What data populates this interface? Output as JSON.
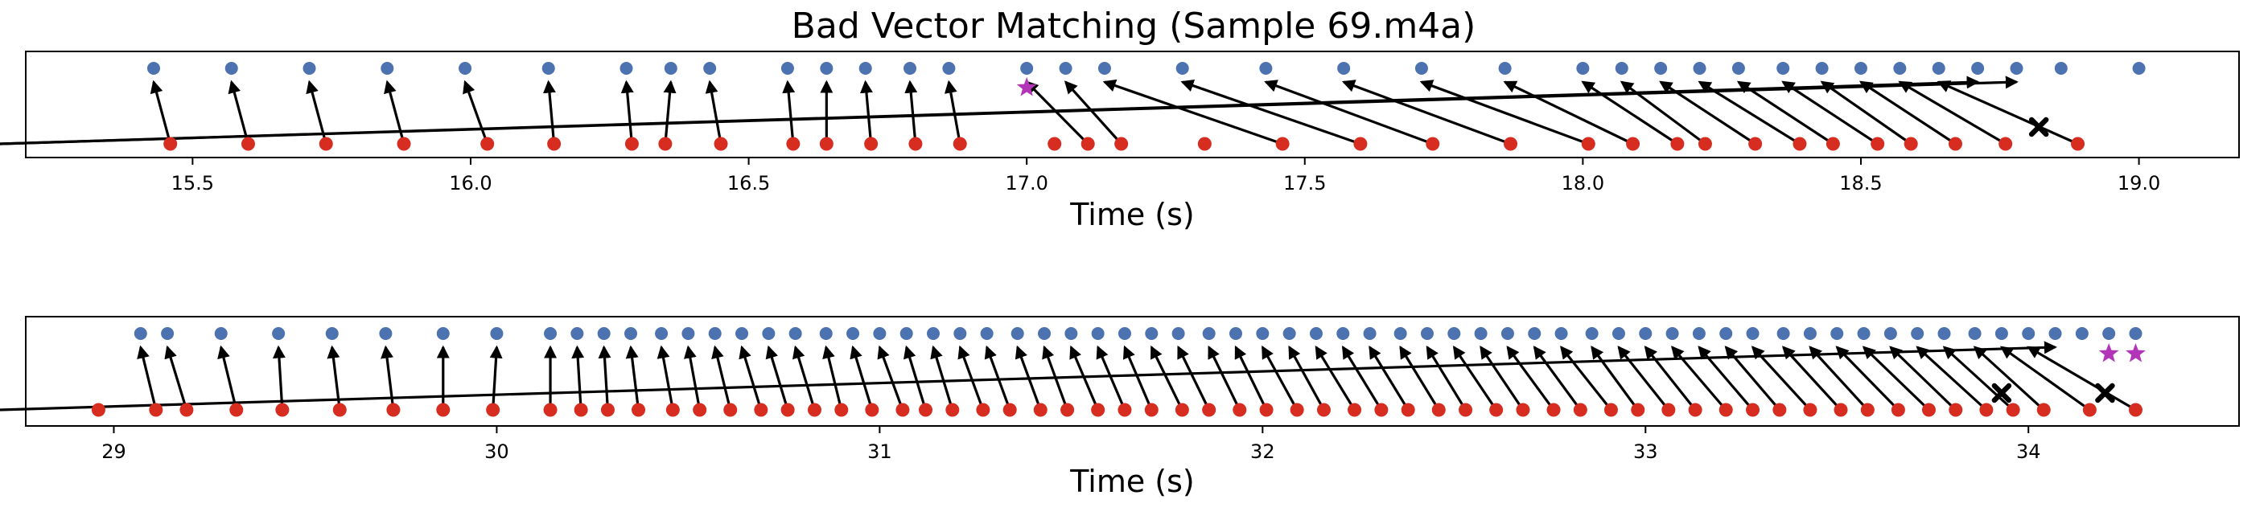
{
  "title": "Bad Vector Matching (Sample 69.m4a)",
  "colors": {
    "reference": "#4c72b0",
    "estimate": "#d62d20",
    "arrow": "#000000",
    "false_positive_star": "#b235b7",
    "missed_cross": "#000000",
    "frame": "#000000"
  },
  "chart_data": [
    {
      "type": "scatter",
      "title": "Bad Vector Matching (Sample 69.m4a)",
      "xlabel": "Time (s)",
      "ylabel": "",
      "xlim": [
        15.2,
        19.18
      ],
      "xticks": [
        15.5,
        16.0,
        16.5,
        17.0,
        17.5,
        18.0,
        18.5,
        19.0
      ],
      "xtick_labels": [
        "15.5",
        "16.0",
        "16.5",
        "17.0",
        "17.5",
        "18.0",
        "18.5",
        "19.0"
      ],
      "grid": false,
      "legend": "none",
      "reference_onsets": [
        15.43,
        15.57,
        15.71,
        15.85,
        15.99,
        16.14,
        16.28,
        16.36,
        16.43,
        16.57,
        16.64,
        16.71,
        16.79,
        16.86,
        17.0,
        17.07,
        17.14,
        17.28,
        17.43,
        17.57,
        17.71,
        17.86,
        18.0,
        18.07,
        18.14,
        18.21,
        18.28,
        18.36,
        18.43,
        18.5,
        18.57,
        18.64,
        18.71,
        18.78,
        18.86,
        19.0
      ],
      "estimated_onsets": [
        15.46,
        15.6,
        15.74,
        15.88,
        16.03,
        16.15,
        16.29,
        16.35,
        16.45,
        16.58,
        16.64,
        16.72,
        16.8,
        16.88,
        17.05,
        17.11,
        17.17,
        17.32,
        17.46,
        17.6,
        17.73,
        17.87,
        18.01,
        18.09,
        18.17,
        18.22,
        18.31,
        18.39,
        18.45,
        18.53,
        18.59,
        18.67,
        18.76,
        18.89
      ],
      "matches": [
        [
          0,
          0
        ],
        [
          1,
          1
        ],
        [
          2,
          2
        ],
        [
          3,
          3
        ],
        [
          4,
          4
        ],
        [
          5,
          5
        ],
        [
          6,
          6
        ],
        [
          7,
          7
        ],
        [
          8,
          8
        ],
        [
          9,
          9
        ],
        [
          10,
          10
        ],
        [
          11,
          11
        ],
        [
          12,
          12
        ],
        [
          13,
          13
        ],
        [
          14,
          15
        ],
        [
          15,
          16
        ],
        [
          16,
          18
        ],
        [
          17,
          19
        ],
        [
          18,
          20
        ],
        [
          19,
          21
        ],
        [
          20,
          22
        ],
        [
          21,
          23
        ],
        [
          22,
          24
        ],
        [
          23,
          25
        ],
        [
          24,
          26
        ],
        [
          25,
          27
        ],
        [
          26,
          28
        ],
        [
          27,
          29
        ],
        [
          28,
          30
        ],
        [
          29,
          31
        ],
        [
          30,
          32
        ],
        [
          31,
          33
        ],
        [
          32,
          34
        ],
        [
          33,
          35
        ]
      ],
      "unmatched_references": [
        14,
        17
      ],
      "missed_markers": [
        18.82
      ],
      "false_positive_markers": [
        17.0
      ]
    },
    {
      "type": "scatter",
      "xlabel": "Time (s)",
      "ylabel": "",
      "xlim": [
        28.77,
        34.55
      ],
      "xticks": [
        29,
        30,
        31,
        32,
        33,
        34
      ],
      "xtick_labels": [
        "29",
        "30",
        "31",
        "32",
        "33",
        "34"
      ],
      "grid": false,
      "legend": "none",
      "reference_onsets": [
        29.07,
        29.14,
        29.28,
        29.43,
        29.57,
        29.71,
        29.86,
        30.0,
        30.14,
        30.21,
        30.28,
        30.35,
        30.43,
        30.5,
        30.57,
        30.64,
        30.71,
        30.78,
        30.86,
        30.93,
        31.0,
        31.07,
        31.14,
        31.21,
        31.28,
        31.36,
        31.43,
        31.5,
        31.57,
        31.64,
        31.71,
        31.78,
        31.86,
        31.93,
        32.0,
        32.07,
        32.14,
        32.21,
        32.28,
        32.36,
        32.43,
        32.5,
        32.57,
        32.64,
        32.71,
        32.78,
        32.86,
        32.93,
        33.0,
        33.07,
        33.14,
        33.21,
        33.28,
        33.36,
        33.43,
        33.5,
        33.57,
        33.64,
        33.71,
        33.78,
        33.86,
        33.93,
        34.0,
        34.07,
        34.14,
        34.21,
        34.28
      ],
      "estimated_onsets": [
        28.96,
        29.11,
        29.19,
        29.32,
        29.44,
        29.59,
        29.73,
        29.86,
        29.99,
        30.14,
        30.22,
        30.29,
        30.37,
        30.46,
        30.53,
        30.61,
        30.69,
        30.76,
        30.83,
        30.9,
        30.98,
        31.06,
        31.12,
        31.19,
        31.27,
        31.34,
        31.42,
        31.49,
        31.57,
        31.64,
        31.71,
        31.79,
        31.86,
        31.94,
        32.01,
        32.09,
        32.16,
        32.24,
        32.31,
        32.38,
        32.46,
        32.53,
        32.61,
        32.68,
        32.76,
        32.83,
        32.91,
        32.98,
        33.06,
        33.13,
        33.21,
        33.28,
        33.35,
        33.43,
        33.51,
        33.58,
        33.66,
        33.74,
        33.81,
        33.89,
        33.96,
        34.04,
        34.16,
        34.28
      ],
      "matches": [
        [
          0,
          1
        ],
        [
          1,
          2
        ],
        [
          2,
          3
        ],
        [
          3,
          4
        ],
        [
          4,
          5
        ],
        [
          5,
          6
        ],
        [
          6,
          7
        ],
        [
          7,
          8
        ],
        [
          8,
          9
        ],
        [
          9,
          10
        ],
        [
          10,
          11
        ],
        [
          11,
          12
        ],
        [
          12,
          13
        ],
        [
          13,
          14
        ],
        [
          14,
          15
        ],
        [
          15,
          16
        ],
        [
          16,
          17
        ],
        [
          17,
          18
        ],
        [
          18,
          19
        ],
        [
          19,
          20
        ],
        [
          20,
          21
        ],
        [
          21,
          22
        ],
        [
          22,
          23
        ],
        [
          23,
          24
        ],
        [
          24,
          25
        ],
        [
          25,
          26
        ],
        [
          26,
          27
        ],
        [
          27,
          28
        ],
        [
          28,
          29
        ],
        [
          29,
          30
        ],
        [
          30,
          31
        ],
        [
          31,
          32
        ],
        [
          32,
          33
        ],
        [
          33,
          34
        ],
        [
          34,
          35
        ],
        [
          35,
          36
        ],
        [
          36,
          37
        ],
        [
          37,
          38
        ],
        [
          38,
          39
        ],
        [
          39,
          40
        ],
        [
          40,
          41
        ],
        [
          41,
          42
        ],
        [
          42,
          43
        ],
        [
          43,
          44
        ],
        [
          44,
          45
        ],
        [
          45,
          46
        ],
        [
          46,
          47
        ],
        [
          47,
          48
        ],
        [
          48,
          49
        ],
        [
          49,
          50
        ],
        [
          50,
          51
        ],
        [
          51,
          52
        ],
        [
          52,
          53
        ],
        [
          53,
          54
        ],
        [
          54,
          55
        ],
        [
          55,
          56
        ],
        [
          56,
          57
        ],
        [
          57,
          58
        ],
        [
          58,
          59
        ],
        [
          59,
          60
        ],
        [
          60,
          61
        ],
        [
          61,
          62
        ],
        [
          62,
          63
        ],
        [
          63,
          64
        ]
      ],
      "unmatched_references": [
        65,
        66
      ],
      "missed_markers": [
        33.93,
        34.2
      ],
      "false_positive_markers": [
        34.21,
        34.28
      ]
    }
  ]
}
